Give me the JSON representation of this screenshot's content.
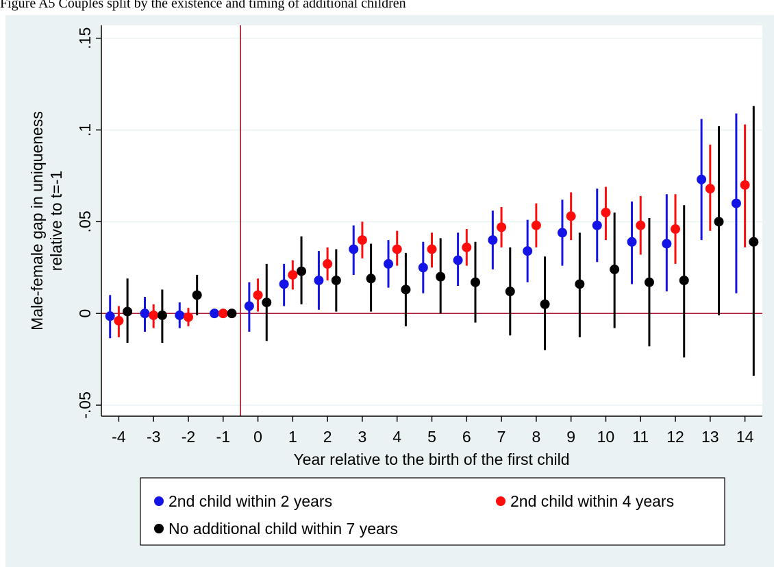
{
  "chart_data": {
    "type": "errorbar_points",
    "caption": "Figure A5 Couples split by the existence and timing of additional children",
    "y_label": [
      "Male-female gap in uniqueness",
      "relative to t=-1"
    ],
    "x_label": "Year relative to the birth of the first child",
    "x": [
      -4,
      -3,
      -2,
      -1,
      0,
      1,
      2,
      3,
      4,
      5,
      6,
      7,
      8,
      9,
      10,
      11,
      12,
      13,
      14
    ],
    "xlim": [
      -4.5,
      14.5
    ],
    "xticks": [
      -4,
      -3,
      -2,
      -1,
      0,
      1,
      2,
      3,
      4,
      5,
      6,
      7,
      8,
      9,
      10,
      11,
      12,
      13,
      14
    ],
    "ylim": [
      -0.056,
      0.157
    ],
    "yticks": [
      {
        "value": -0.05,
        "label": "-.05"
      },
      0,
      {
        "value": 0.05,
        "label": ".05"
      },
      {
        "value": 0.1,
        "label": ".1"
      },
      {
        "value": 0.15,
        "label": ".15"
      }
    ],
    "grid": true,
    "vline": -0.5,
    "hline": 0,
    "reference_line_color": "#b0213a",
    "series": [
      {
        "name": "2nd child within 2 years",
        "color": "#1414e6",
        "values": [
          -0.0015,
          0,
          -0.001,
          0,
          0.004,
          0.016,
          0.018,
          0.035,
          0.027,
          0.025,
          0.029,
          0.04,
          0.034,
          0.044,
          0.048,
          0.039,
          0.038,
          0.073,
          0.06
        ],
        "lower": [
          -0.0135,
          -0.01,
          -0.008,
          null,
          -0.01,
          0.004,
          0.002,
          0.021,
          0.014,
          0.011,
          0.015,
          0.024,
          0.017,
          0.026,
          0.028,
          0.016,
          0.012,
          0.04,
          0.011
        ],
        "upper": [
          0.01,
          0.009,
          0.006,
          null,
          0.017,
          0.027,
          0.034,
          0.048,
          0.04,
          0.039,
          0.044,
          0.056,
          0.051,
          0.062,
          0.068,
          0.061,
          0.065,
          0.106,
          0.109
        ]
      },
      {
        "name": "2nd child within 4 years",
        "color": "#ff0d0d",
        "values": [
          -0.004,
          -0.001,
          -0.002,
          0,
          0.01,
          0.021,
          0.027,
          0.04,
          0.035,
          0.035,
          0.036,
          0.047,
          0.048,
          0.053,
          0.055,
          0.048,
          0.046,
          0.068,
          0.07
        ],
        "lower": [
          -0.013,
          -0.008,
          -0.007,
          null,
          0.001,
          0.013,
          0.018,
          0.03,
          0.026,
          0.025,
          0.026,
          0.036,
          0.036,
          0.04,
          0.04,
          0.032,
          0.027,
          0.045,
          0.036
        ],
        "upper": [
          0.004,
          0.005,
          0.003,
          null,
          0.019,
          0.029,
          0.036,
          0.05,
          0.045,
          0.044,
          0.046,
          0.058,
          0.06,
          0.066,
          0.069,
          0.064,
          0.065,
          0.092,
          0.103
        ]
      },
      {
        "name": "No additional child within 7 years",
        "color": "#000000",
        "values": [
          0.001,
          -0.001,
          0.01,
          0,
          0.006,
          0.023,
          0.018,
          0.019,
          0.013,
          0.02,
          0.017,
          0.012,
          0.005,
          0.016,
          0.024,
          0.017,
          0.018,
          0.05,
          0.039
        ],
        "lower": [
          -0.016,
          -0.016,
          -0.001,
          null,
          -0.015,
          0.005,
          0.001,
          0.001,
          -0.007,
          0.0,
          -0.005,
          -0.012,
          -0.02,
          -0.013,
          -0.008,
          -0.018,
          -0.024,
          -0.001,
          -0.034
        ],
        "upper": [
          0.019,
          0.013,
          0.021,
          null,
          0.027,
          0.042,
          0.035,
          0.038,
          0.033,
          0.041,
          0.039,
          0.036,
          0.031,
          0.044,
          0.055,
          0.052,
          0.059,
          0.102,
          0.113
        ]
      }
    ]
  }
}
